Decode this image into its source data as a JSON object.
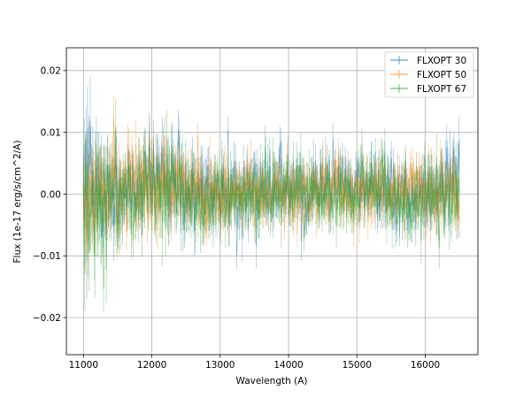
{
  "chart_data": {
    "type": "line",
    "title": "",
    "xlabel": "Wavelength (A)",
    "ylabel": "Flux (1e-17 erg/s/cm^2/A)",
    "xlim": [
      10750,
      16770
    ],
    "ylim": [
      -0.026,
      0.0237
    ],
    "xticks": [
      11000,
      12000,
      13000,
      14000,
      15000,
      16000
    ],
    "xtick_labels": [
      "11000",
      "12000",
      "13000",
      "14000",
      "15000",
      "16000"
    ],
    "yticks": [
      -0.02,
      -0.01,
      0.0,
      0.01,
      0.02
    ],
    "ytick_labels": [
      "−0.02",
      "−0.01",
      "0.00",
      "0.01",
      "0.02"
    ],
    "grid": true,
    "legend_position": "top-right",
    "x_range": [
      11000,
      16500
    ],
    "series": [
      {
        "name": "FLXOPT 30",
        "color": "#1f77b4",
        "x": [
          11000,
          11100,
          11200,
          11300,
          11400,
          11500,
          11700,
          12000,
          12300,
          12500,
          12800,
          13000,
          13300,
          13600,
          14000,
          14300,
          14700,
          15000,
          15300,
          15600,
          16000,
          16300,
          16500
        ],
        "y": [
          0.002,
          0.0045,
          0.001,
          0.0005,
          0.0015,
          -0.0005,
          0.0005,
          0.0012,
          0.003,
          0.0015,
          0.0005,
          0.001,
          -0.0005,
          0.0005,
          0.001,
          0.0,
          0.0015,
          0.0005,
          0.002,
          -0.0005,
          0.0,
          0.0015,
          0.0035
        ],
        "noise": [
          0.006,
          0.008,
          0.0055,
          0.005,
          0.005,
          0.0045,
          0.004,
          0.0045,
          0.005,
          0.0045,
          0.004,
          0.004,
          0.0038,
          0.0035,
          0.0035,
          0.0035,
          0.0035,
          0.0035,
          0.0037,
          0.0037,
          0.0038,
          0.004,
          0.0045
        ]
      },
      {
        "name": "FLXOPT 50",
        "color": "#ff7f0e",
        "x": [
          11000,
          11100,
          11200,
          11300,
          11400,
          11500,
          11700,
          12000,
          12300,
          12500,
          12800,
          13000,
          13300,
          13600,
          14000,
          14300,
          14700,
          15000,
          15300,
          15600,
          16000,
          16300,
          16500
        ],
        "y": [
          0.0015,
          0.0,
          -0.0015,
          0.0005,
          0.0005,
          0.0005,
          0.001,
          0.0005,
          0.0015,
          0.0005,
          0.0,
          0.0005,
          0.0,
          0.0005,
          0.0005,
          0.0,
          0.0005,
          0.0005,
          0.001,
          0.0,
          0.0,
          0.0005,
          0.001
        ],
        "noise": [
          0.005,
          0.006,
          0.0055,
          0.005,
          0.005,
          0.0045,
          0.004,
          0.0045,
          0.0045,
          0.004,
          0.004,
          0.0038,
          0.0035,
          0.0033,
          0.0033,
          0.0032,
          0.0032,
          0.0032,
          0.0034,
          0.0034,
          0.0035,
          0.0036,
          0.004
        ]
      },
      {
        "name": "FLXOPT 67",
        "color": "#2ca02c",
        "x": [
          11000,
          11100,
          11200,
          11300,
          11400,
          11500,
          11700,
          12000,
          12300,
          12500,
          12800,
          13000,
          13300,
          13600,
          14000,
          14300,
          14700,
          15000,
          15300,
          15600,
          16000,
          16300,
          16500
        ],
        "y": [
          0.0005,
          -0.003,
          -0.002,
          -0.001,
          0.0,
          -0.001,
          0.0,
          -0.0005,
          0.0005,
          -0.0005,
          -0.001,
          0.0,
          -0.0005,
          0.0,
          0.0005,
          0.0,
          0.0,
          -0.0005,
          0.0,
          -0.0005,
          0.0,
          0.0,
          -0.0005
        ],
        "noise": [
          0.0055,
          0.0075,
          0.0065,
          0.0055,
          0.005,
          0.005,
          0.0045,
          0.0048,
          0.0048,
          0.0042,
          0.004,
          0.004,
          0.0038,
          0.0036,
          0.0036,
          0.0035,
          0.0035,
          0.0036,
          0.0038,
          0.0038,
          0.004,
          0.004,
          0.0042
        ]
      }
    ]
  }
}
